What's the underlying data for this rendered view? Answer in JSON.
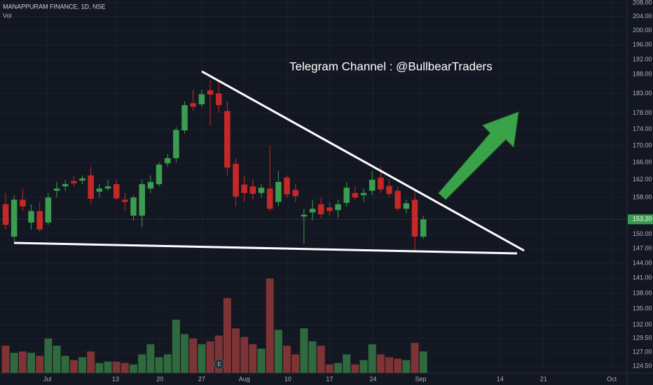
{
  "chart_data": {
    "type": "candlestick",
    "title": "MANAPPURAM FINANCE, 1D, NSE",
    "volume_label": "Vol",
    "annotation": "Telegram Channel : @BullbearTraders",
    "event_marker": "E",
    "log_scale": true,
    "grid": true,
    "up_color": "#3a9d4f",
    "down_color": "#c62828",
    "volume_up_color": "#2f6a3f",
    "volume_down_color": "#7e3434",
    "x": [
      0,
      1,
      2,
      3,
      4,
      5,
      6,
      7,
      8,
      9,
      10,
      11,
      12,
      13,
      14,
      15,
      16,
      17,
      18,
      19,
      20,
      21,
      22,
      23,
      24,
      25,
      26,
      27,
      28,
      29,
      30,
      31,
      32,
      33,
      34,
      35,
      36,
      37,
      38,
      39,
      40,
      41,
      42,
      43,
      44,
      45,
      46,
      47,
      48,
      49
    ],
    "open": [
      156.5,
      149.5,
      157.5,
      152.5,
      155,
      152.5,
      159.5,
      160.5,
      161.7,
      161.8,
      163,
      159.3,
      160,
      161,
      157.5,
      154,
      154,
      160,
      161,
      165.8,
      167,
      173.7,
      180.5,
      180.2,
      183.8,
      183,
      178.5,
      165.7,
      160.9,
      160.5,
      159,
      160,
      157,
      162.5,
      159.7,
      153.8,
      154.7,
      156.5,
      155.8,
      155.2,
      156.8,
      159,
      158.5,
      159.5,
      162.5,
      160.6,
      159.5,
      155.5,
      157.5,
      149.5
    ],
    "high": [
      159,
      158.5,
      160,
      156.5,
      157,
      159,
      161.5,
      162,
      163,
      163,
      165,
      161,
      162,
      162,
      159,
      158.5,
      162,
      163,
      166,
      168,
      174.5,
      181,
      184,
      184,
      186.5,
      186,
      181,
      167,
      163,
      162,
      161,
      170,
      164,
      163,
      161,
      155.5,
      157.5,
      158,
      157,
      157.5,
      161.5,
      160.5,
      160,
      164,
      165,
      162,
      160.5,
      157.5,
      159.5,
      154
    ],
    "low": [
      151,
      148.5,
      155,
      151,
      150.5,
      152,
      158,
      159.5,
      160.5,
      161,
      156.5,
      158,
      159.5,
      157.5,
      155,
      153,
      151.5,
      159,
      160.5,
      165,
      166,
      173,
      178.5,
      179.5,
      175,
      178,
      163,
      156,
      157,
      157.5,
      158,
      155,
      156,
      158,
      157,
      148,
      153,
      153.5,
      154,
      153.5,
      156,
      157.5,
      157,
      158.5,
      159,
      158,
      155,
      154.5,
      146.5,
      149
    ],
    "close": [
      152,
      157.5,
      156,
      155,
      151,
      158,
      160,
      161,
      161.2,
      162.3,
      157.7,
      160,
      160.5,
      157.8,
      157,
      158,
      161,
      161.5,
      165.5,
      167,
      173.8,
      180,
      179.6,
      182.8,
      182.7,
      180,
      164.8,
      158.2,
      159,
      158.8,
      160.2,
      155.5,
      161.5,
      158.7,
      158.3,
      154.2,
      155.5,
      154.3,
      155,
      156.5,
      160.2,
      158,
      159,
      162,
      159.8,
      158.8,
      155.5,
      156.7,
      149.5,
      153.2
    ],
    "volume": [
      38,
      28,
      30,
      28,
      24,
      48,
      38,
      24,
      18,
      22,
      30,
      14,
      16,
      16,
      14,
      12,
      26,
      40,
      22,
      26,
      74,
      54,
      48,
      40,
      44,
      52,
      104,
      62,
      50,
      40,
      34,
      131,
      60,
      38,
      26,
      62,
      44,
      38,
      12,
      14,
      26,
      12,
      18,
      40,
      26,
      22,
      20,
      18,
      42,
      30
    ],
    "xlim": [
      -0.66,
      72.9
    ],
    "xticks": [
      {
        "value": 4.9,
        "label": "Jul"
      },
      {
        "value": 12.9,
        "label": "13"
      },
      {
        "value": 18.1,
        "label": "20"
      },
      {
        "value": 23,
        "label": "27"
      },
      {
        "value": 28,
        "label": "Aug"
      },
      {
        "value": 33.1,
        "label": "10"
      },
      {
        "value": 38,
        "label": "17"
      },
      {
        "value": 43.1,
        "label": "24"
      },
      {
        "value": 48.7,
        "label": "Sep"
      },
      {
        "value": 58,
        "label": "14"
      },
      {
        "value": 63.1,
        "label": "21"
      },
      {
        "value": 71.1,
        "label": "Oct"
      }
    ],
    "ylim": [
      123.3,
      208.8
    ],
    "yticks": [
      {
        "value": 124.5,
        "label": "124.50"
      },
      {
        "value": 127,
        "label": "127.00"
      },
      {
        "value": 129.5,
        "label": "129.50"
      },
      {
        "value": 132,
        "label": "132.00"
      },
      {
        "value": 135,
        "label": "135.00"
      },
      {
        "value": 138,
        "label": "138.00"
      },
      {
        "value": 141,
        "label": "141.00"
      },
      {
        "value": 144,
        "label": "144.00"
      },
      {
        "value": 147,
        "label": "147.00"
      },
      {
        "value": 150,
        "label": "150.00"
      },
      {
        "value": 158,
        "label": "158.00"
      },
      {
        "value": 162,
        "label": "162.00"
      },
      {
        "value": 166,
        "label": "166.00"
      },
      {
        "value": 170,
        "label": "170.00"
      },
      {
        "value": 174,
        "label": "174.00"
      },
      {
        "value": 178,
        "label": "178.00"
      },
      {
        "value": 183,
        "label": "183.00"
      },
      {
        "value": 188,
        "label": "188.00"
      },
      {
        "value": 192,
        "label": "192.00"
      },
      {
        "value": 196,
        "label": "196.00"
      },
      {
        "value": 200,
        "label": "200.00"
      },
      {
        "value": 204,
        "label": "204.00"
      },
      {
        "value": 208,
        "label": "208.00"
      }
    ],
    "last_price": {
      "value": 153.2,
      "label": "153.20"
    }
  }
}
